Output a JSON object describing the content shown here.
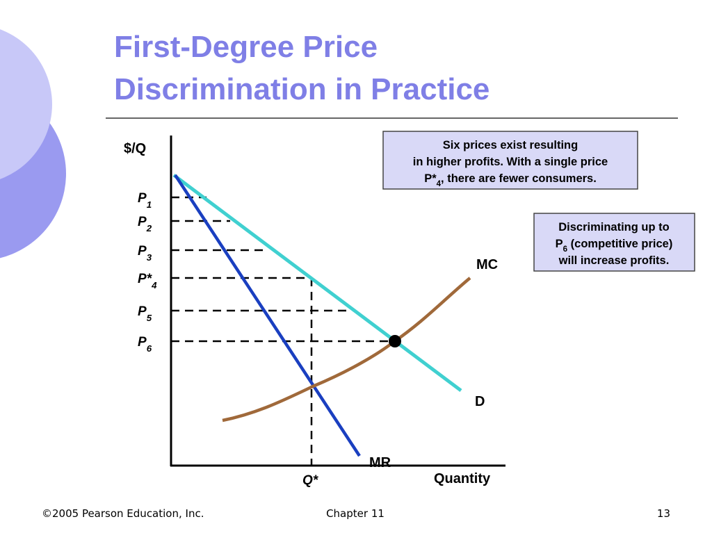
{
  "header": {
    "title": [
      "First-Degree Price",
      "Discrimination in Practice"
    ]
  },
  "diagram": {
    "y_axis_label": "$/Q",
    "x_axis_label": "Quantity",
    "prices": [
      [
        {
          "t": "P"
        },
        {
          "sub": "1"
        }
      ],
      [
        {
          "t": "P"
        },
        {
          "sub": "2"
        }
      ],
      [
        {
          "t": "P"
        },
        {
          "sub": "3"
        }
      ],
      [
        {
          "t": "P*"
        },
        {
          "sub": "4"
        }
      ],
      [
        {
          "t": "P"
        },
        {
          "sub": "5"
        }
      ],
      [
        {
          "t": "P"
        },
        {
          "sub": "6"
        }
      ]
    ],
    "quantity_label": "Q*",
    "curves": {
      "mc": "MC",
      "d": "D",
      "mr": "MR"
    },
    "notes": [
      [
        [
          {
            "t": "Six prices exist resulting"
          }
        ],
        [
          {
            "t": "in higher profits.  With a single price"
          }
        ],
        [
          {
            "t": "P*"
          },
          {
            "sub": "4"
          },
          {
            "t": ", there are fewer consumers."
          }
        ]
      ],
      [
        [
          {
            "t": "Discriminating up to"
          }
        ],
        [
          {
            "t": "P"
          },
          {
            "sub": "6"
          },
          {
            "t": " (competitive price)"
          }
        ],
        [
          {
            "t": "will increase profits."
          }
        ]
      ]
    ]
  },
  "footer": {
    "copyright": "©2005 Pearson Education, Inc.",
    "chapter": "Chapter 11",
    "page": "13"
  }
}
